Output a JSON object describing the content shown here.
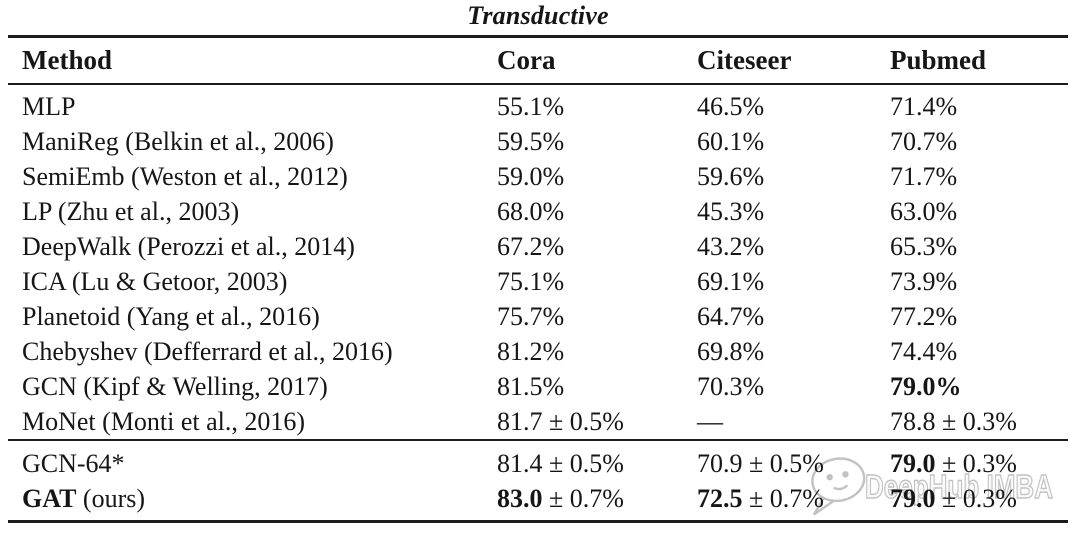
{
  "title": "Transductive",
  "columns": {
    "method": "Method",
    "cora": "Cora",
    "citeseer": "Citeseer",
    "pubmed": "Pubmed"
  },
  "rows": [
    {
      "method": [
        {
          "t": "MLP"
        }
      ],
      "cora": [
        {
          "t": "55.1%"
        }
      ],
      "citeseer": [
        {
          "t": "46.5%"
        }
      ],
      "pubmed": [
        {
          "t": "71.4%"
        }
      ]
    },
    {
      "method": [
        {
          "t": "ManiReg (Belkin et al., 2006)"
        }
      ],
      "cora": [
        {
          "t": "59.5%"
        }
      ],
      "citeseer": [
        {
          "t": "60.1%"
        }
      ],
      "pubmed": [
        {
          "t": "70.7%"
        }
      ]
    },
    {
      "method": [
        {
          "t": "SemiEmb (Weston et al., 2012)"
        }
      ],
      "cora": [
        {
          "t": "59.0%"
        }
      ],
      "citeseer": [
        {
          "t": "59.6%"
        }
      ],
      "pubmed": [
        {
          "t": "71.7%"
        }
      ]
    },
    {
      "method": [
        {
          "t": "LP (Zhu et al., 2003)"
        }
      ],
      "cora": [
        {
          "t": "68.0%"
        }
      ],
      "citeseer": [
        {
          "t": "45.3%"
        }
      ],
      "pubmed": [
        {
          "t": "63.0%"
        }
      ]
    },
    {
      "method": [
        {
          "t": "DeepWalk (Perozzi et al., 2014)"
        }
      ],
      "cora": [
        {
          "t": "67.2%"
        }
      ],
      "citeseer": [
        {
          "t": "43.2%"
        }
      ],
      "pubmed": [
        {
          "t": "65.3%"
        }
      ]
    },
    {
      "method": [
        {
          "t": "ICA (Lu & Getoor, 2003)"
        }
      ],
      "cora": [
        {
          "t": "75.1%"
        }
      ],
      "citeseer": [
        {
          "t": "69.1%"
        }
      ],
      "pubmed": [
        {
          "t": "73.9%"
        }
      ]
    },
    {
      "method": [
        {
          "t": "Planetoid (Yang et al., 2016)"
        }
      ],
      "cora": [
        {
          "t": "75.7%"
        }
      ],
      "citeseer": [
        {
          "t": "64.7%"
        }
      ],
      "pubmed": [
        {
          "t": "77.2%"
        }
      ]
    },
    {
      "method": [
        {
          "t": "Chebyshev (Defferrard et al., 2016)"
        }
      ],
      "cora": [
        {
          "t": "81.2%"
        }
      ],
      "citeseer": [
        {
          "t": "69.8%"
        }
      ],
      "pubmed": [
        {
          "t": "74.4%"
        }
      ]
    },
    {
      "method": [
        {
          "t": "GCN (Kipf & Welling, 2017)"
        }
      ],
      "cora": [
        {
          "t": "81.5%"
        }
      ],
      "citeseer": [
        {
          "t": "70.3%"
        }
      ],
      "pubmed": [
        {
          "t": "79.0%",
          "b": true
        }
      ]
    },
    {
      "method": [
        {
          "t": "MoNet (Monti et al., 2016)"
        }
      ],
      "cora": [
        {
          "t": "81.7 ± 0.5%"
        }
      ],
      "citeseer": [
        {
          "t": "—"
        }
      ],
      "pubmed": [
        {
          "t": "78.8 ± 0.3%"
        }
      ]
    }
  ],
  "footer_rows": [
    {
      "method": [
        {
          "t": "GCN-64*"
        }
      ],
      "cora": [
        {
          "t": "81.4 ± 0.5%"
        }
      ],
      "citeseer": [
        {
          "t": "70.9 ± 0.5%"
        }
      ],
      "pubmed": [
        {
          "t": "79.0",
          "b": true
        },
        {
          "t": " ± 0.3%"
        }
      ]
    },
    {
      "method": [
        {
          "t": "GAT",
          "b": true
        },
        {
          "t": " (ours)"
        }
      ],
      "cora": [
        {
          "t": "83.0",
          "b": true
        },
        {
          "t": " ± 0.7%"
        }
      ],
      "citeseer": [
        {
          "t": "72.5",
          "b": true
        },
        {
          "t": " ± 0.7%"
        }
      ],
      "pubmed": [
        {
          "t": "79.0",
          "b": true
        },
        {
          "t": " ± 0.3%"
        }
      ]
    }
  ],
  "watermark": {
    "text": "DeepHub IMBA",
    "icon": "chat-bubble-smiley-icon",
    "color": "#c2c2c2"
  },
  "chart_data": {
    "type": "table",
    "title": "Transductive",
    "categories": [
      "Cora",
      "Citeseer",
      "Pubmed"
    ],
    "series": [
      {
        "name": "MLP",
        "values": [
          55.1,
          46.5,
          71.4
        ]
      },
      {
        "name": "ManiReg (Belkin et al., 2006)",
        "values": [
          59.5,
          60.1,
          70.7
        ]
      },
      {
        "name": "SemiEmb (Weston et al., 2012)",
        "values": [
          59.0,
          59.6,
          71.7
        ]
      },
      {
        "name": "LP (Zhu et al., 2003)",
        "values": [
          68.0,
          45.3,
          63.0
        ]
      },
      {
        "name": "DeepWalk (Perozzi et al., 2014)",
        "values": [
          67.2,
          43.2,
          65.3
        ]
      },
      {
        "name": "ICA (Lu & Getoor, 2003)",
        "values": [
          75.1,
          69.1,
          73.9
        ]
      },
      {
        "name": "Planetoid (Yang et al., 2016)",
        "values": [
          75.7,
          64.7,
          77.2
        ]
      },
      {
        "name": "Chebyshev (Defferrard et al., 2016)",
        "values": [
          81.2,
          69.8,
          74.4
        ]
      },
      {
        "name": "GCN (Kipf & Welling, 2017)",
        "values": [
          81.5,
          70.3,
          79.0
        ]
      },
      {
        "name": "MoNet (Monti et al., 2016)",
        "values": [
          81.7,
          null,
          78.8
        ]
      },
      {
        "name": "GCN-64*",
        "values": [
          81.4,
          70.9,
          79.0
        ]
      },
      {
        "name": "GAT (ours)",
        "values": [
          83.0,
          72.5,
          79.0
        ]
      }
    ]
  },
  "colors": {
    "text": "#161616",
    "rule": "#1c1c1c",
    "background": "#ffffff",
    "watermark": "#c2c2c2"
  }
}
